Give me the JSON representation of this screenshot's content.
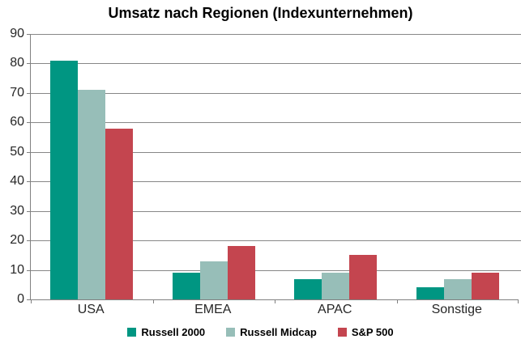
{
  "title": "Umsatz nach Regionen (Indexunternehmen)",
  "chart_data": {
    "type": "bar",
    "title": "Umsatz nach Regionen (Indexunternehmen)",
    "categories": [
      "USA",
      "EMEA",
      "APAC",
      "Sonstige"
    ],
    "series": [
      {
        "name": "Russell 2000",
        "color": "#009682",
        "values": [
          81,
          9,
          7,
          4
        ]
      },
      {
        "name": "Russell Midcap",
        "color": "#97BEB8",
        "values": [
          71,
          13,
          9,
          7
        ]
      },
      {
        "name": "S&P 500",
        "color": "#C4454F",
        "values": [
          58,
          18,
          15,
          9
        ]
      }
    ],
    "xlabel": "",
    "ylabel": "",
    "ylim": [
      0,
      90
    ],
    "yticks": [
      0,
      10,
      20,
      30,
      40,
      50,
      60,
      70,
      80,
      90
    ],
    "grid": true,
    "grid_color": "#878787",
    "axis_color": "#808080",
    "text_color": "#262626",
    "legend_position": "bottom"
  }
}
